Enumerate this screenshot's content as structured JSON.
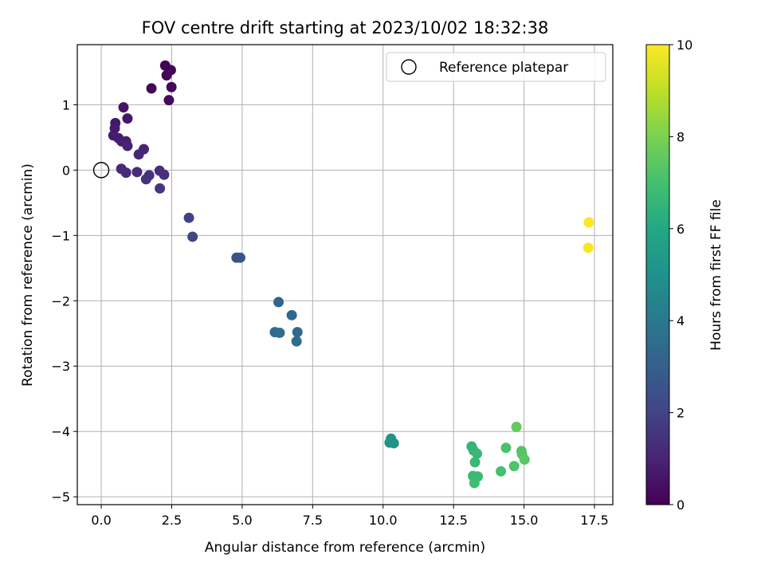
{
  "chart_data": {
    "type": "scatter",
    "title": "FOV centre drift starting at 2023/10/02 18:32:38",
    "xlabel": "Angular distance from reference (arcmin)",
    "ylabel": "Rotation from reference (arcmin)",
    "xlim": [
      -0.85,
      18.15
    ],
    "ylim": [
      -5.12,
      1.92
    ],
    "xticks": [
      0.0,
      2.5,
      5.0,
      7.5,
      10.0,
      12.5,
      15.0,
      17.5
    ],
    "xtick_labels": [
      "0.0",
      "2.5",
      "5.0",
      "7.5",
      "10.0",
      "12.5",
      "15.0",
      "17.5"
    ],
    "yticks": [
      -5,
      -4,
      -3,
      -2,
      -1,
      0,
      1
    ],
    "ytick_labels": [
      "−5",
      "−4",
      "−3",
      "−2",
      "−1",
      "0",
      "1"
    ],
    "grid": true,
    "legend": {
      "position": "top-right",
      "entries": [
        "Reference platepar"
      ]
    },
    "reference_point": {
      "x": 0.0,
      "y": 0.0
    },
    "colorbar": {
      "label": "Hours from first FF file",
      "range": [
        0,
        10
      ],
      "ticks": [
        0,
        2,
        4,
        6,
        8,
        10
      ],
      "tick_labels": [
        "0",
        "2",
        "4",
        "6",
        "8",
        "10"
      ],
      "colormap": "viridis"
    },
    "points": [
      {
        "x": 2.27,
        "y": 1.6,
        "c": 0.05
      },
      {
        "x": 2.47,
        "y": 1.53,
        "c": 0.08
      },
      {
        "x": 2.32,
        "y": 1.45,
        "c": 0.1
      },
      {
        "x": 1.78,
        "y": 1.25,
        "c": 0.15
      },
      {
        "x": 2.49,
        "y": 1.27,
        "c": 0.18
      },
      {
        "x": 2.4,
        "y": 1.07,
        "c": 0.25
      },
      {
        "x": 0.79,
        "y": 0.96,
        "c": 0.55
      },
      {
        "x": 0.93,
        "y": 0.79,
        "c": 0.6
      },
      {
        "x": 0.5,
        "y": 0.72,
        "c": 0.65
      },
      {
        "x": 0.48,
        "y": 0.64,
        "c": 0.7
      },
      {
        "x": 0.43,
        "y": 0.53,
        "c": 0.75
      },
      {
        "x": 0.61,
        "y": 0.49,
        "c": 0.8
      },
      {
        "x": 0.72,
        "y": 0.44,
        "c": 0.85
      },
      {
        "x": 0.88,
        "y": 0.44,
        "c": 0.9
      },
      {
        "x": 0.93,
        "y": 0.37,
        "c": 0.95
      },
      {
        "x": 1.51,
        "y": 0.32,
        "c": 1.0
      },
      {
        "x": 1.33,
        "y": 0.24,
        "c": 1.05
      },
      {
        "x": 0.71,
        "y": 0.02,
        "c": 1.15
      },
      {
        "x": 0.88,
        "y": -0.04,
        "c": 1.2
      },
      {
        "x": 1.27,
        "y": -0.03,
        "c": 1.25
      },
      {
        "x": 2.07,
        "y": -0.01,
        "c": 1.3
      },
      {
        "x": 2.23,
        "y": -0.07,
        "c": 1.35
      },
      {
        "x": 1.7,
        "y": -0.08,
        "c": 1.4
      },
      {
        "x": 1.59,
        "y": -0.14,
        "c": 1.45
      },
      {
        "x": 2.08,
        "y": -0.28,
        "c": 1.55
      },
      {
        "x": 3.11,
        "y": -0.73,
        "c": 1.95
      },
      {
        "x": 3.24,
        "y": -1.02,
        "c": 2.1
      },
      {
        "x": 4.8,
        "y": -1.34,
        "c": 2.5
      },
      {
        "x": 4.93,
        "y": -1.34,
        "c": 2.55
      },
      {
        "x": 6.29,
        "y": -2.02,
        "c": 3.25
      },
      {
        "x": 6.76,
        "y": -2.22,
        "c": 3.35
      },
      {
        "x": 6.96,
        "y": -2.48,
        "c": 3.4
      },
      {
        "x": 6.16,
        "y": -2.48,
        "c": 3.45
      },
      {
        "x": 6.33,
        "y": -2.49,
        "c": 3.5
      },
      {
        "x": 6.93,
        "y": -2.62,
        "c": 3.55
      },
      {
        "x": 10.28,
        "y": -4.11,
        "c": 5.0
      },
      {
        "x": 10.23,
        "y": -4.17,
        "c": 5.05
      },
      {
        "x": 10.38,
        "y": -4.18,
        "c": 5.1
      },
      {
        "x": 13.14,
        "y": -4.23,
        "c": 6.55
      },
      {
        "x": 13.21,
        "y": -4.29,
        "c": 6.6
      },
      {
        "x": 13.33,
        "y": -4.34,
        "c": 6.65
      },
      {
        "x": 13.26,
        "y": -4.47,
        "c": 6.7
      },
      {
        "x": 13.19,
        "y": -4.68,
        "c": 6.75
      },
      {
        "x": 13.36,
        "y": -4.69,
        "c": 6.8
      },
      {
        "x": 13.24,
        "y": -4.79,
        "c": 6.85
      },
      {
        "x": 14.18,
        "y": -4.61,
        "c": 7.0
      },
      {
        "x": 14.36,
        "y": -4.25,
        "c": 7.1
      },
      {
        "x": 14.65,
        "y": -4.53,
        "c": 7.2
      },
      {
        "x": 14.91,
        "y": -4.3,
        "c": 7.3
      },
      {
        "x": 14.93,
        "y": -4.35,
        "c": 7.35
      },
      {
        "x": 15.02,
        "y": -4.43,
        "c": 7.4
      },
      {
        "x": 14.73,
        "y": -3.93,
        "c": 7.6
      },
      {
        "x": 17.3,
        "y": -0.8,
        "c": 10.0
      },
      {
        "x": 17.28,
        "y": -1.19,
        "c": 9.9
      }
    ]
  }
}
